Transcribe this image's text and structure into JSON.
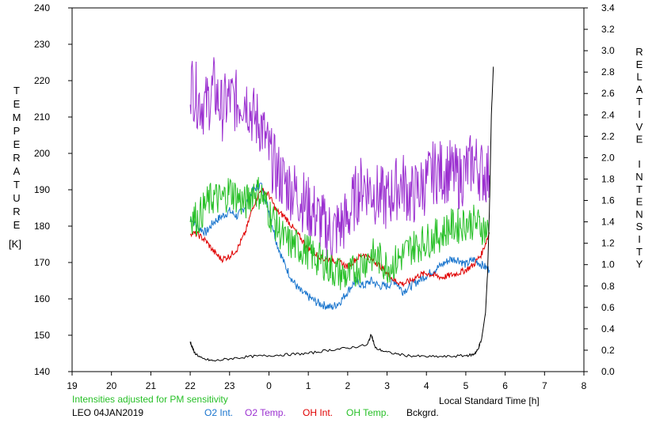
{
  "chart_data": {
    "type": "line",
    "xlabel": "Local Standard Time [h]",
    "ylabel_left": "TEMPERATURE [K]",
    "ylabel_right": "RELATIVE INTENSITY",
    "left_label_letters": [
      "T",
      "E",
      "M",
      "P",
      "E",
      "R",
      "A",
      "T",
      "U",
      "R",
      "E"
    ],
    "left_unit": "[K]",
    "right_label_letters": [
      "R",
      "E",
      "L",
      "A",
      "T",
      "I",
      "V",
      "E",
      "",
      "I",
      "N",
      "T",
      "E",
      "N",
      "S",
      "I",
      "T",
      "Y"
    ],
    "xlim": [
      19,
      32
    ],
    "x_tick_values": [
      19,
      20,
      21,
      22,
      23,
      24,
      25,
      26,
      27,
      28,
      29,
      30,
      31,
      32
    ],
    "x_tick_labels": [
      "19",
      "20",
      "21",
      "22",
      "23",
      "0",
      "1",
      "2",
      "3",
      "4",
      "5",
      "6",
      "7",
      "8"
    ],
    "ylim_left": [
      140,
      240
    ],
    "y_left_ticks": [
      "140",
      "150",
      "160",
      "170",
      "180",
      "190",
      "200",
      "210",
      "220",
      "230",
      "240"
    ],
    "ylim_right": [
      0,
      3.4
    ],
    "y_right_ticks": [
      "0.0",
      "0.2",
      "0.4",
      "0.6",
      "0.8",
      "1.0",
      "1.2",
      "1.4",
      "1.6",
      "1.8",
      "2.0",
      "2.2",
      "2.4",
      "2.6",
      "2.8",
      "3.0",
      "3.2",
      "3.4"
    ],
    "grid": false,
    "series": [
      {
        "name": "O2 Int.",
        "axis": "right",
        "color": "#1874cd",
        "x": [
          22.0,
          22.2,
          22.4,
          22.6,
          22.8,
          23.0,
          23.2,
          23.4,
          23.6,
          23.8,
          24.0,
          24.2,
          24.4,
          24.6,
          24.8,
          25.0,
          25.2,
          25.4,
          25.6,
          25.8,
          26.0,
          26.2,
          26.4,
          26.6,
          26.8,
          27.0,
          27.2,
          27.4,
          27.6,
          27.8,
          28.0,
          28.2,
          28.4,
          28.6,
          28.8,
          29.0,
          29.2,
          29.4,
          29.6
        ],
        "y": [
          1.45,
          1.35,
          1.3,
          1.4,
          1.45,
          1.5,
          1.45,
          1.55,
          1.7,
          1.75,
          1.5,
          1.2,
          1.0,
          0.85,
          0.75,
          0.7,
          0.65,
          0.62,
          0.6,
          0.65,
          0.75,
          0.85,
          0.8,
          0.85,
          0.8,
          0.8,
          0.85,
          0.75,
          0.8,
          0.85,
          0.9,
          0.95,
          1.0,
          1.05,
          1.05,
          1.0,
          1.05,
          1.0,
          0.95
        ]
      },
      {
        "name": "O2 Temp.",
        "axis": "left",
        "color": "#9b30d0",
        "x": [
          22.0,
          22.2,
          22.4,
          22.6,
          22.8,
          23.0,
          23.2,
          23.4,
          23.6,
          23.8,
          24.0,
          24.2,
          24.4,
          24.6,
          24.8,
          25.0,
          25.2,
          25.4,
          25.6,
          25.8,
          26.0,
          26.2,
          26.4,
          26.6,
          26.8,
          27.0,
          27.2,
          27.4,
          27.6,
          27.8,
          28.0,
          28.2,
          28.4,
          28.6,
          28.8,
          29.0,
          29.2,
          29.4,
          29.6
        ],
        "y": [
          220,
          215,
          213,
          218,
          212,
          215,
          214,
          216,
          210,
          208,
          200,
          195,
          192,
          190,
          188,
          185,
          183,
          180,
          178,
          180,
          182,
          188,
          192,
          190,
          188,
          187,
          190,
          192,
          188,
          190,
          192,
          195,
          195,
          195,
          193,
          195,
          198,
          195,
          194
        ]
      },
      {
        "name": "OH Int.",
        "axis": "right",
        "color": "#e00000",
        "x": [
          22.0,
          22.2,
          22.4,
          22.6,
          22.8,
          23.0,
          23.2,
          23.4,
          23.6,
          23.8,
          24.0,
          24.2,
          24.4,
          24.6,
          24.8,
          25.0,
          25.2,
          25.4,
          25.6,
          25.8,
          26.0,
          26.2,
          26.4,
          26.6,
          26.8,
          27.0,
          27.2,
          27.4,
          27.6,
          27.8,
          28.0,
          28.2,
          28.4,
          28.6,
          28.8,
          29.0,
          29.2,
          29.4,
          29.6
        ],
        "y": [
          1.3,
          1.28,
          1.22,
          1.12,
          1.05,
          1.08,
          1.15,
          1.3,
          1.55,
          1.7,
          1.65,
          1.5,
          1.45,
          1.35,
          1.25,
          1.15,
          1.1,
          1.05,
          1.05,
          1.02,
          0.98,
          1.05,
          1.1,
          1.05,
          1.0,
          0.92,
          0.85,
          0.82,
          0.85,
          0.9,
          0.92,
          0.9,
          0.88,
          0.9,
          0.92,
          0.95,
          1.0,
          1.1,
          1.3
        ]
      },
      {
        "name": "OH Temp.",
        "axis": "left",
        "color": "#28c028",
        "x": [
          22.0,
          22.2,
          22.4,
          22.6,
          22.8,
          23.0,
          23.2,
          23.4,
          23.6,
          23.8,
          24.0,
          24.2,
          24.4,
          24.6,
          24.8,
          25.0,
          25.2,
          25.4,
          25.6,
          25.8,
          26.0,
          26.2,
          26.4,
          26.6,
          26.8,
          27.0,
          27.2,
          27.4,
          27.6,
          27.8,
          28.0,
          28.2,
          28.4,
          28.6,
          28.8,
          29.0,
          29.2,
          29.4,
          29.6
        ],
        "y": [
          183,
          182,
          186,
          188,
          187,
          190,
          188,
          186,
          190,
          189,
          184,
          180,
          176,
          175,
          174,
          173,
          171,
          170,
          168,
          167,
          166,
          168,
          170,
          172,
          171,
          169,
          170,
          172,
          174,
          175,
          176,
          177,
          178,
          180,
          180,
          181,
          181,
          180,
          178
        ]
      },
      {
        "name": "Bckgrd.",
        "axis": "right",
        "color": "#000000",
        "x": [
          22.0,
          22.1,
          22.3,
          22.6,
          23.0,
          23.5,
          24.0,
          24.5,
          25.0,
          25.5,
          26.0,
          26.5,
          26.6,
          26.7,
          27.0,
          27.5,
          28.0,
          28.5,
          29.0,
          29.2,
          29.3,
          29.4,
          29.5,
          29.55,
          29.6,
          29.65,
          29.7
        ],
        "y": [
          0.28,
          0.18,
          0.12,
          0.1,
          0.12,
          0.14,
          0.15,
          0.16,
          0.17,
          0.2,
          0.22,
          0.25,
          0.35,
          0.22,
          0.18,
          0.15,
          0.14,
          0.14,
          0.15,
          0.16,
          0.2,
          0.3,
          0.55,
          0.9,
          1.5,
          2.4,
          2.85
        ]
      }
    ]
  },
  "footer": {
    "note": "Intensities adjusted for PM sensitivity",
    "station_date": "LEO 04JAN2019"
  },
  "colors": {
    "note": "#28c028",
    "axes": "#000000"
  }
}
